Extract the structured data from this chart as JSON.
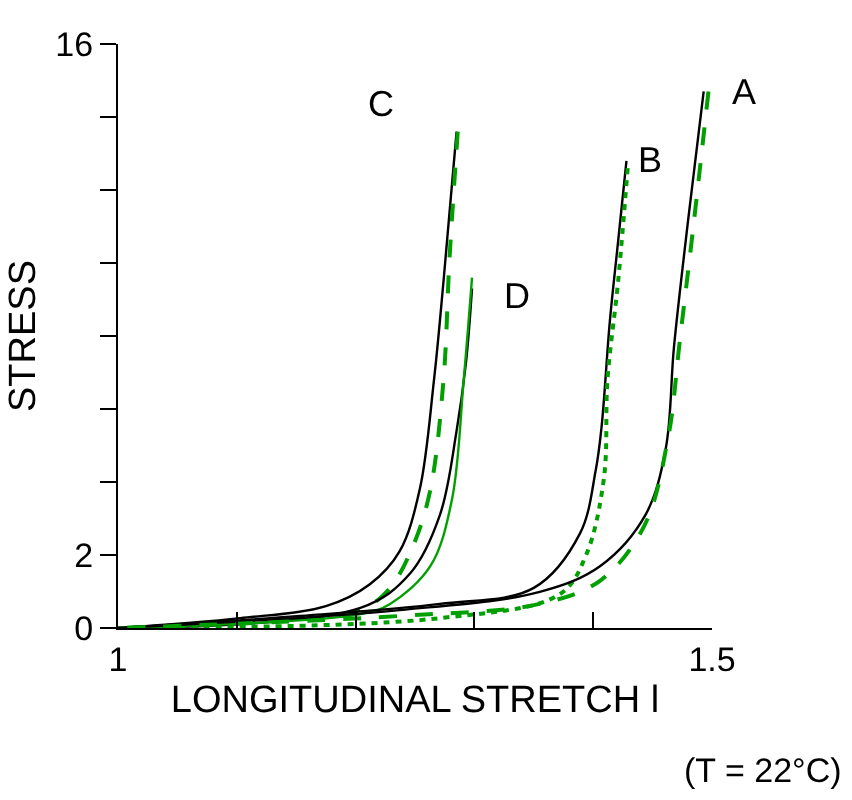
{
  "chart_data": {
    "type": "line",
    "xlabel": "LONGITUDINAL STRETCH l",
    "ylabel": "STRESS",
    "xlim": [
      1,
      1.5
    ],
    "ylim": [
      0,
      16
    ],
    "xticks": [
      1,
      {
        "value": 1.1,
        "label": null
      },
      {
        "value": 1.2,
        "label": null
      },
      {
        "value": 1.3,
        "label": null
      },
      {
        "value": 1.4,
        "label": null
      },
      1.5
    ],
    "yticks": [
      0,
      2,
      {
        "value": 4,
        "label": null
      },
      {
        "value": 6,
        "label": null
      },
      {
        "value": 8,
        "label": null
      },
      {
        "value": 10,
        "label": null
      },
      {
        "value": 12,
        "label": null
      },
      {
        "value": 14,
        "label": null
      },
      16
    ],
    "grid": false,
    "legend": false,
    "marker": "none",
    "series": [
      {
        "name": "C",
        "color": "#000000",
        "line_style": "solid",
        "x": [
          1,
          1.103,
          1.175,
          1.212,
          1.237,
          1.254,
          1.266,
          1.274,
          1.285
        ],
        "values": [
          0,
          0.27,
          0.6,
          1.2,
          2.1,
          3.8,
          6.8,
          9.5,
          13.6
        ]
      },
      {
        "color": "#00a000",
        "line_style": "dashed",
        "x": [
          1.286,
          1.279,
          1.274,
          1.263,
          1.249,
          1.229,
          1.204,
          1.103,
          1
        ],
        "values": [
          13.6,
          10.1,
          6.8,
          3.8,
          2.3,
          1.1,
          0.5,
          0.16,
          0
        ]
      },
      {
        "name": "D",
        "color": "#000000",
        "line_style": "solid",
        "x": [
          1,
          1.204,
          1.246,
          1.271,
          1.285,
          1.293,
          1.298
        ],
        "values": [
          0,
          0.55,
          1.5,
          3.1,
          5.4,
          7.3,
          9.3
        ]
      },
      {
        "color": "#00a000",
        "line_style": "solid",
        "x": [
          1.298,
          1.291,
          1.281,
          1.263,
          1.229,
          1.204,
          1
        ],
        "values": [
          9.6,
          6.8,
          3.5,
          1.7,
          0.66,
          0.38,
          0
        ]
      },
      {
        "name": "B",
        "color": "#000000",
        "line_style": "solid",
        "x": [
          1,
          1.153,
          1.271,
          1.35,
          1.389,
          1.402,
          1.407,
          1.414,
          1.421,
          1.428
        ],
        "values": [
          0,
          0.33,
          0.66,
          1.1,
          2.6,
          4.3,
          5.5,
          8.4,
          10.6,
          12.8
        ]
      },
      {
        "color": "#00a000",
        "line_style": "dotted",
        "x": [
          1.429,
          1.421,
          1.412,
          1.409,
          1.394,
          1.372,
          1.271,
          1
        ],
        "values": [
          12.6,
          9.5,
          6.8,
          4.1,
          2.0,
          0.93,
          0.27,
          0
        ]
      },
      {
        "name": "A",
        "color": "#000000",
        "line_style": "solid",
        "x": [
          1,
          1.237,
          1.355,
          1.406,
          1.444,
          1.461,
          1.468,
          1.48,
          1.493
        ],
        "values": [
          0,
          0.49,
          0.99,
          1.7,
          3.1,
          4.9,
          7.7,
          11.2,
          14.7
        ]
      },
      {
        "color": "#00a000",
        "line_style": "dashed",
        "x": [
          1.497,
          1.485,
          1.473,
          1.463,
          1.443,
          1.406,
          1.355,
          1.237,
          1
        ],
        "values": [
          14.7,
          11.2,
          7.9,
          5.2,
          2.8,
          1.3,
          0.66,
          0.33,
          0
        ]
      }
    ],
    "annotations": [
      "(T = 22°C)"
    ]
  }
}
